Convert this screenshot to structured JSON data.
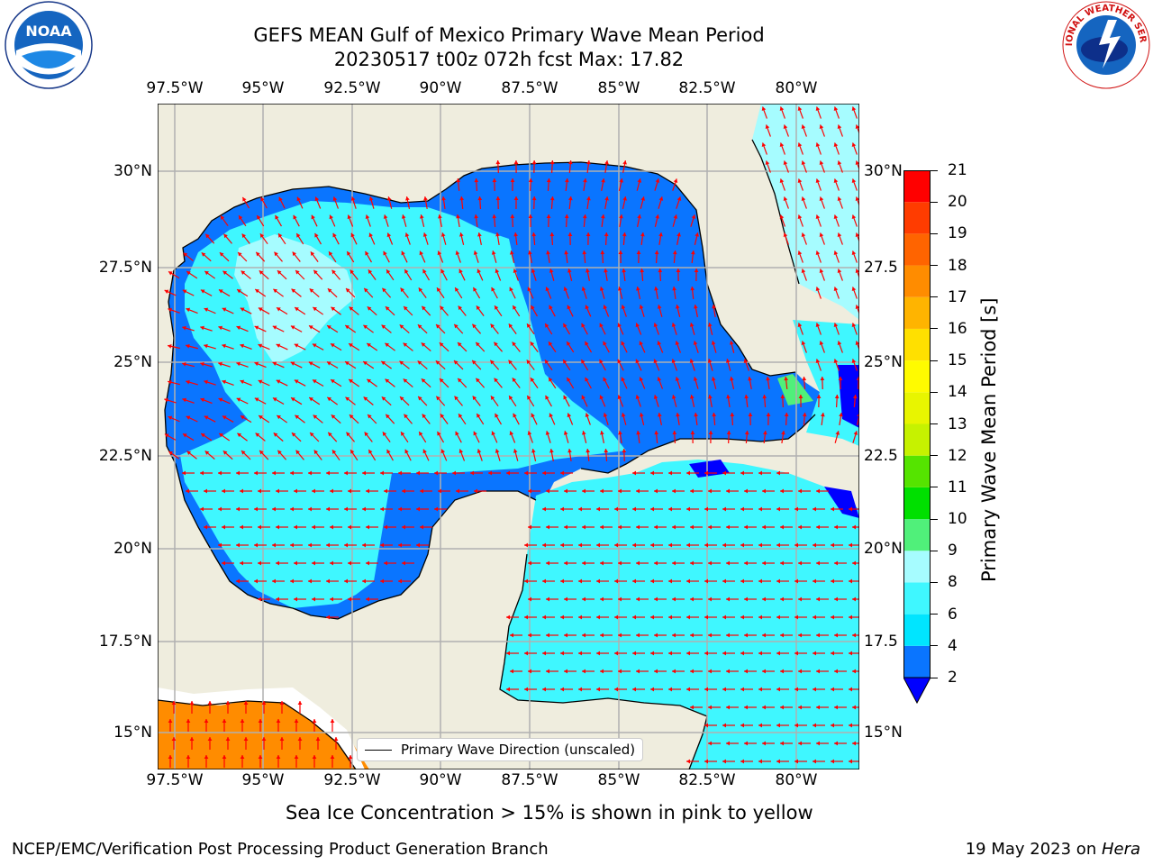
{
  "header": {
    "title_line1": "GEFS MEAN Gulf of Mexico Primary Wave Mean Period",
    "title_line2": "20230517 t00z 072h fcst   Max: 17.82"
  },
  "logos": {
    "left": "noaa-logo",
    "right": "national-weather-service-logo",
    "noaa_text": "NOAA",
    "nws_text": "NATIONAL WEATHER SERVICE"
  },
  "map": {
    "lon_labels": [
      "97.5°W",
      "95°W",
      "92.5°W",
      "90°W",
      "87.5°W",
      "85°W",
      "82.5°W",
      "80°W"
    ],
    "lat_labels_left": [
      "30°N",
      "27.5°N",
      "25°N",
      "22.5°N",
      "20°N",
      "17.5°N",
      "15°N"
    ],
    "lat_labels_right": [
      "30°N",
      "27.5",
      "25°N",
      "22.5",
      "20°N",
      "17.5",
      "15°N"
    ],
    "legend_label": "Primary Wave Direction (unscaled)",
    "arrow_color": "#ff0000",
    "land_color": "#efedde",
    "coast_color": "#000000"
  },
  "colorbar": {
    "title": "Primary Wave Mean Period [s]",
    "tick_labels": [
      "21",
      "20",
      "19",
      "18",
      "17",
      "16",
      "15",
      "14",
      "13",
      "12",
      "11",
      "10",
      "9",
      "8",
      "6",
      "4",
      "2"
    ],
    "bands": [
      {
        "lo": 2,
        "hi": 4,
        "color": "#0a75ff"
      },
      {
        "lo": 4,
        "hi": 6,
        "color": "#00e5ff"
      },
      {
        "lo": 6,
        "hi": 8,
        "color": "#3ff7ff"
      },
      {
        "lo": 8,
        "hi": 9,
        "color": "#a6fcff"
      },
      {
        "lo": 9,
        "hi": 10,
        "color": "#50f07a"
      },
      {
        "lo": 10,
        "hi": 11,
        "color": "#00e000"
      },
      {
        "lo": 11,
        "hi": 12,
        "color": "#55e400"
      },
      {
        "lo": 12,
        "hi": 13,
        "color": "#c6f200"
      },
      {
        "lo": 13,
        "hi": 14,
        "color": "#e8f500"
      },
      {
        "lo": 14,
        "hi": 15,
        "color": "#fffb00"
      },
      {
        "lo": 15,
        "hi": 16,
        "color": "#ffe000"
      },
      {
        "lo": 16,
        "hi": 17,
        "color": "#ffb400"
      },
      {
        "lo": 17,
        "hi": 18,
        "color": "#ff8c00"
      },
      {
        "lo": 18,
        "hi": 19,
        "color": "#ff6400"
      },
      {
        "lo": 19,
        "hi": 20,
        "color": "#ff3c00"
      },
      {
        "lo": 20,
        "hi": 21,
        "color": "#ff0000"
      }
    ],
    "under_color": "#0000ff"
  },
  "note": "Sea Ice Concentration > 15% is shown in pink to yellow",
  "footer": {
    "left": "NCEP/EMC/Verification Post Processing Product Generation Branch",
    "right_prefix": "19 May 2023 on ",
    "right_host": "Hera"
  }
}
